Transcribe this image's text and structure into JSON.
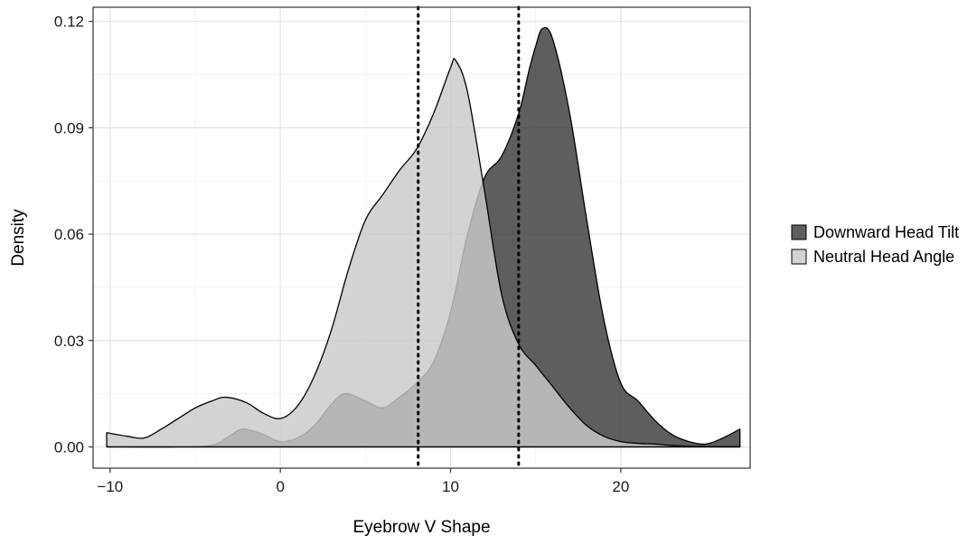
{
  "chart_data": {
    "type": "area",
    "subtype": "density",
    "xlabel": "Eyebrow V Shape",
    "ylabel": "Density",
    "xlim": [
      -11.0,
      27.6
    ],
    "ylim": [
      -0.006,
      0.124
    ],
    "xticks": [
      -10,
      0,
      10,
      20
    ],
    "xtick_labels": [
      "−10",
      "0",
      "10",
      "20"
    ],
    "yticks": [
      0.0,
      0.03,
      0.06,
      0.09,
      0.12
    ],
    "ytick_labels": [
      "0.00",
      "0.03",
      "0.06",
      "0.09",
      "0.12"
    ],
    "grid": true,
    "legend_position": "right",
    "series": [
      {
        "name": "Downward Head Tilt",
        "fill": "#3a3a3a",
        "x": [
          -10.2,
          -6,
          -4,
          -3,
          -2.2,
          -1,
          0,
          1,
          2,
          3,
          3.8,
          5,
          6,
          7,
          8,
          9,
          10,
          11,
          12,
          13,
          14,
          14.6,
          15,
          15.4,
          16,
          17,
          18,
          19,
          20,
          21,
          22,
          23,
          24,
          25,
          26,
          27
        ],
        "y": [
          0.0,
          0.0,
          0.0005,
          0.003,
          0.005,
          0.0035,
          0.0015,
          0.0025,
          0.006,
          0.012,
          0.015,
          0.013,
          0.011,
          0.014,
          0.018,
          0.024,
          0.038,
          0.06,
          0.076,
          0.082,
          0.094,
          0.106,
          0.113,
          0.118,
          0.115,
          0.094,
          0.064,
          0.036,
          0.018,
          0.013,
          0.0075,
          0.0035,
          0.0015,
          0.0008,
          0.0025,
          0.005
        ]
      },
      {
        "name": "Neutral Head Angle",
        "fill": "#c9c9c9",
        "x": [
          -10.2,
          -9,
          -8,
          -7,
          -6,
          -5,
          -4,
          -3.2,
          -2,
          -1,
          0,
          1,
          2,
          3,
          4,
          5,
          6,
          7,
          8,
          9,
          10,
          10.3,
          11,
          12,
          13,
          14,
          15,
          16,
          17,
          18,
          19,
          20,
          21,
          22,
          23,
          24,
          25,
          26,
          27
        ],
        "y": [
          0.004,
          0.003,
          0.0025,
          0.005,
          0.008,
          0.011,
          0.013,
          0.014,
          0.0125,
          0.0095,
          0.008,
          0.0115,
          0.02,
          0.033,
          0.05,
          0.064,
          0.071,
          0.078,
          0.084,
          0.094,
          0.107,
          0.109,
          0.1,
          0.072,
          0.043,
          0.029,
          0.023,
          0.017,
          0.011,
          0.006,
          0.003,
          0.0015,
          0.001,
          0.0008,
          0.0004,
          0.0002,
          0.0001,
          0.0,
          0.0
        ]
      }
    ],
    "reference_lines": [
      {
        "axis": "x",
        "value": 8.1,
        "style": "dotted"
      },
      {
        "axis": "x",
        "value": 14.0,
        "style": "dotted"
      }
    ]
  }
}
